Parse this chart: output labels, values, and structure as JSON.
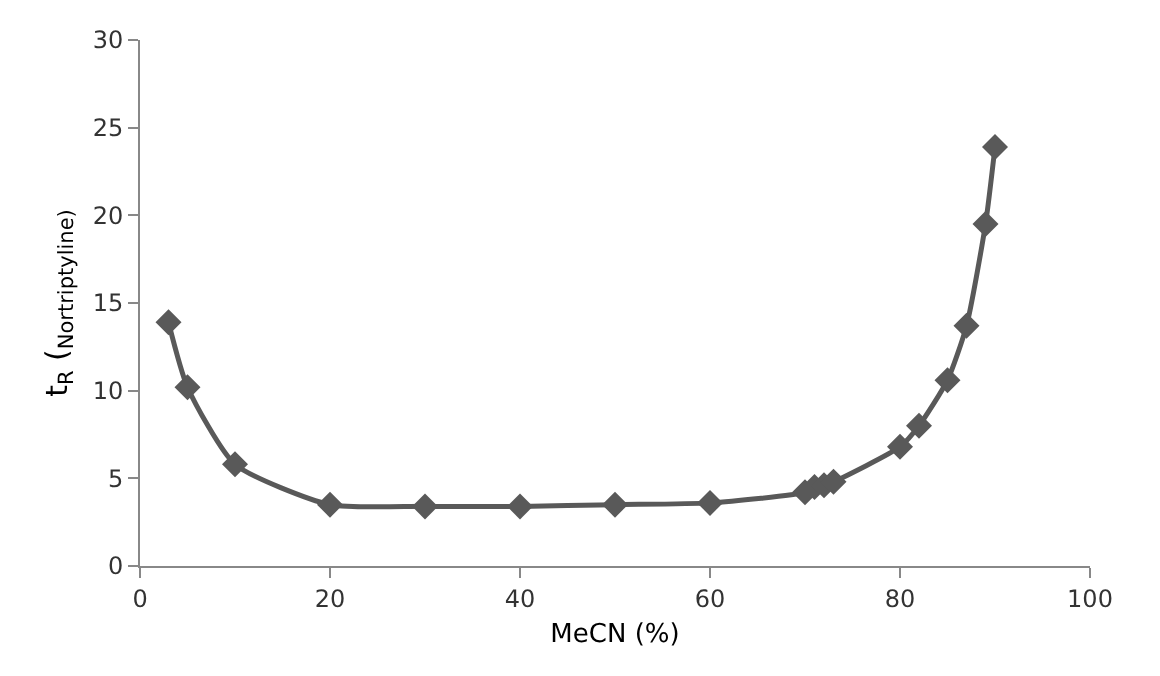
{
  "chart_data": {
    "type": "line",
    "xlabel": "MeCN (%)",
    "ylabel": "t$_{R}$ ($_{Nortriptyline)}$",
    "x": [
      3,
      5,
      10,
      20,
      30,
      40,
      50,
      60,
      70,
      71,
      72,
      73,
      80,
      82,
      85,
      87,
      89,
      90
    ],
    "series": [
      {
        "color": "#595959",
        "values": [
          13.9,
          10.2,
          5.8,
          3.5,
          3.4,
          3.4,
          3.5,
          3.6,
          4.2,
          4.5,
          4.6,
          4.8,
          6.8,
          8,
          10.6,
          13.7,
          19.5,
          23.9
        ]
      }
    ],
    "xlim": [
      0,
      100
    ],
    "xticks": [
      0,
      20,
      40,
      60,
      80,
      100
    ],
    "ylim": [
      0,
      30
    ],
    "yticks": [
      0,
      5,
      10,
      15,
      20,
      25,
      30
    ],
    "marker": "diamond",
    "line_style": "solid"
  }
}
